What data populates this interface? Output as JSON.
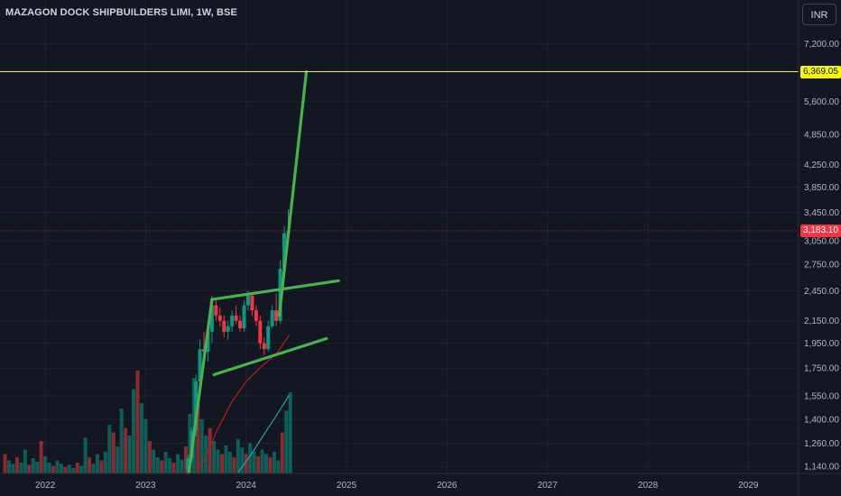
{
  "title": "MAZAGON DOCK SHIPBUILDERS LIMI, 1W, BSE",
  "currency_button": "INR",
  "target_price_label": "6,369.05",
  "last_price_label": "3,183.10",
  "colors": {
    "background": "#131722",
    "grid": "#1e222d",
    "axis_text": "#b2b5be",
    "up": "#089981",
    "down": "#f23645",
    "trendline": "#4caf50",
    "target_line": "#f7f70b",
    "ma_fast": "#b71c1c",
    "ma_slow": "#26a69a"
  },
  "chart_data": {
    "type": "candlestick",
    "title": "MAZAGON DOCK SHIPBUILDERS LIMI, 1W, BSE",
    "x_axis": {
      "ticks": [
        "2022",
        "2023",
        "2024",
        "2025",
        "2026",
        "2027",
        "2028",
        "2029"
      ],
      "range": [
        2021.55,
        2029.5
      ]
    },
    "y_axis": {
      "scale": "log",
      "range": [
        1105,
        7800
      ],
      "ticks": [
        "7,200.00",
        "5,600.00",
        "4,850.00",
        "4,250.00",
        "3,850.00",
        "3,450.00",
        "3,050.00",
        "2,750.00",
        "2,450.00",
        "2,150.00",
        "1,950.00",
        "1,750.00",
        "1,550.00",
        "1,400.00",
        "1,260.00",
        "1,140.00"
      ],
      "tick_values": [
        7200,
        5600,
        4850,
        4250,
        3850,
        3450,
        3050,
        2750,
        2450,
        2150,
        1950,
        1750,
        1550,
        1400,
        1260,
        1140
      ]
    },
    "horizontal_line": {
      "value": 6369.05,
      "label": "6,369.05"
    },
    "last_price": {
      "value": 3183.1,
      "label": "3,183.10"
    },
    "candles": [
      {
        "t": 2023.42,
        "o": 1120,
        "h": 1200,
        "l": 1100,
        "c": 1180
      },
      {
        "t": 2023.46,
        "o": 1180,
        "h": 1350,
        "l": 1160,
        "c": 1330
      },
      {
        "t": 2023.5,
        "o": 1330,
        "h": 1700,
        "l": 1300,
        "c": 1650
      },
      {
        "t": 2023.54,
        "o": 1650,
        "h": 1980,
        "l": 1600,
        "c": 1900
      },
      {
        "t": 2023.58,
        "o": 1900,
        "h": 2050,
        "l": 1820,
        "c": 1880
      },
      {
        "t": 2023.62,
        "o": 1880,
        "h": 2100,
        "l": 1800,
        "c": 2050
      },
      {
        "t": 2023.66,
        "o": 2050,
        "h": 2400,
        "l": 1950,
        "c": 2300
      },
      {
        "t": 2023.7,
        "o": 2300,
        "h": 2350,
        "l": 2150,
        "c": 2200
      },
      {
        "t": 2023.74,
        "o": 2200,
        "h": 2280,
        "l": 2100,
        "c": 2150
      },
      {
        "t": 2023.78,
        "o": 2150,
        "h": 2200,
        "l": 2000,
        "c": 2050
      },
      {
        "t": 2023.82,
        "o": 2050,
        "h": 2150,
        "l": 1980,
        "c": 2100
      },
      {
        "t": 2023.86,
        "o": 2100,
        "h": 2250,
        "l": 2050,
        "c": 2200
      },
      {
        "t": 2023.9,
        "o": 2200,
        "h": 2300,
        "l": 2120,
        "c": 2150
      },
      {
        "t": 2023.94,
        "o": 2150,
        "h": 2200,
        "l": 2050,
        "c": 2080
      },
      {
        "t": 2023.98,
        "o": 2080,
        "h": 2350,
        "l": 2050,
        "c": 2300
      },
      {
        "t": 2024.02,
        "o": 2300,
        "h": 2450,
        "l": 2250,
        "c": 2400
      },
      {
        "t": 2024.06,
        "o": 2400,
        "h": 2420,
        "l": 2200,
        "c": 2250
      },
      {
        "t": 2024.1,
        "o": 2250,
        "h": 2300,
        "l": 2100,
        "c": 2150
      },
      {
        "t": 2024.14,
        "o": 2150,
        "h": 2200,
        "l": 1900,
        "c": 1950
      },
      {
        "t": 2024.18,
        "o": 1950,
        "h": 2000,
        "l": 1850,
        "c": 1900
      },
      {
        "t": 2024.22,
        "o": 1900,
        "h": 2150,
        "l": 1880,
        "c": 2100
      },
      {
        "t": 2024.26,
        "o": 2100,
        "h": 2300,
        "l": 2080,
        "c": 2250
      },
      {
        "t": 2024.3,
        "o": 2250,
        "h": 2420,
        "l": 2100,
        "c": 2150
      },
      {
        "t": 2024.34,
        "o": 2150,
        "h": 2800,
        "l": 2120,
        "c": 2700
      },
      {
        "t": 2024.38,
        "o": 2700,
        "h": 3250,
        "l": 2650,
        "c": 3150
      },
      {
        "t": 2024.42,
        "o": 3150,
        "h": 3500,
        "l": 3050,
        "c": 3183.1
      }
    ],
    "trendlines": [
      {
        "name": "flagpole",
        "points": [
          [
            2023.43,
            1110
          ],
          [
            2023.66,
            2360
          ]
        ]
      },
      {
        "name": "channel-upper",
        "points": [
          [
            2023.66,
            2360
          ],
          [
            2024.92,
            2560
          ]
        ]
      },
      {
        "name": "channel-lower",
        "points": [
          [
            2023.68,
            1700
          ],
          [
            2024.8,
            1990
          ]
        ]
      },
      {
        "name": "breakout-projection",
        "points": [
          [
            2024.33,
            2200
          ],
          [
            2024.6,
            6369.05
          ]
        ]
      }
    ],
    "moving_averages": [
      {
        "color": "ma_fast",
        "points": [
          [
            2023.55,
            1130
          ],
          [
            2023.7,
            1320
          ],
          [
            2023.85,
            1500
          ],
          [
            2024.0,
            1650
          ],
          [
            2024.15,
            1760
          ],
          [
            2024.3,
            1860
          ],
          [
            2024.43,
            2020
          ]
        ]
      },
      {
        "color": "ma_slow",
        "points": [
          [
            2023.92,
            1110
          ],
          [
            2024.05,
            1200
          ],
          [
            2024.2,
            1330
          ],
          [
            2024.3,
            1420
          ],
          [
            2024.43,
            1555
          ]
        ]
      }
    ],
    "volume_bars": [
      {
        "t": 2021.6,
        "v": 0.18
      },
      {
        "t": 2021.64,
        "v": 0.12
      },
      {
        "t": 2021.68,
        "v": 0.09
      },
      {
        "t": 2021.72,
        "v": 0.15
      },
      {
        "t": 2021.76,
        "v": 0.1
      },
      {
        "t": 2021.8,
        "v": 0.22
      },
      {
        "t": 2021.84,
        "v": 0.08
      },
      {
        "t": 2021.88,
        "v": 0.14
      },
      {
        "t": 2021.92,
        "v": 0.11
      },
      {
        "t": 2021.96,
        "v": 0.3
      },
      {
        "t": 2022.0,
        "v": 0.16
      },
      {
        "t": 2022.04,
        "v": 0.1
      },
      {
        "t": 2022.08,
        "v": 0.07
      },
      {
        "t": 2022.12,
        "v": 0.12
      },
      {
        "t": 2022.16,
        "v": 0.09
      },
      {
        "t": 2022.2,
        "v": 0.06
      },
      {
        "t": 2022.24,
        "v": 0.08
      },
      {
        "t": 2022.28,
        "v": 0.05
      },
      {
        "t": 2022.32,
        "v": 0.1
      },
      {
        "t": 2022.36,
        "v": 0.07
      },
      {
        "t": 2022.4,
        "v": 0.33
      },
      {
        "t": 2022.44,
        "v": 0.15
      },
      {
        "t": 2022.48,
        "v": 0.09
      },
      {
        "t": 2022.52,
        "v": 0.18
      },
      {
        "t": 2022.56,
        "v": 0.12
      },
      {
        "t": 2022.6,
        "v": 0.2
      },
      {
        "t": 2022.64,
        "v": 0.45
      },
      {
        "t": 2022.68,
        "v": 0.38
      },
      {
        "t": 2022.72,
        "v": 0.25
      },
      {
        "t": 2022.76,
        "v": 0.6
      },
      {
        "t": 2022.8,
        "v": 0.42
      },
      {
        "t": 2022.84,
        "v": 0.35
      },
      {
        "t": 2022.88,
        "v": 0.78
      },
      {
        "t": 2022.92,
        "v": 0.95
      },
      {
        "t": 2022.96,
        "v": 0.65
      },
      {
        "t": 2023.0,
        "v": 0.5
      },
      {
        "t": 2023.04,
        "v": 0.3
      },
      {
        "t": 2023.08,
        "v": 0.22
      },
      {
        "t": 2023.12,
        "v": 0.15
      },
      {
        "t": 2023.16,
        "v": 0.12
      },
      {
        "t": 2023.2,
        "v": 0.2
      },
      {
        "t": 2023.24,
        "v": 0.14
      },
      {
        "t": 2023.28,
        "v": 0.1
      },
      {
        "t": 2023.32,
        "v": 0.18
      },
      {
        "t": 2023.36,
        "v": 0.13
      },
      {
        "t": 2023.4,
        "v": 0.25
      },
      {
        "t": 2023.44,
        "v": 0.55
      },
      {
        "t": 2023.48,
        "v": 0.88
      },
      {
        "t": 2023.52,
        "v": 0.7
      },
      {
        "t": 2023.56,
        "v": 0.5
      },
      {
        "t": 2023.6,
        "v": 0.35
      },
      {
        "t": 2023.64,
        "v": 0.42
      },
      {
        "t": 2023.68,
        "v": 0.3
      },
      {
        "t": 2023.72,
        "v": 0.22
      },
      {
        "t": 2023.76,
        "v": 0.18
      },
      {
        "t": 2023.8,
        "v": 0.26
      },
      {
        "t": 2023.84,
        "v": 0.2
      },
      {
        "t": 2023.88,
        "v": 0.15
      },
      {
        "t": 2023.92,
        "v": 0.32
      },
      {
        "t": 2023.96,
        "v": 0.24
      },
      {
        "t": 2024.0,
        "v": 0.18
      },
      {
        "t": 2024.04,
        "v": 0.28
      },
      {
        "t": 2024.08,
        "v": 0.2
      },
      {
        "t": 2024.12,
        "v": 0.16
      },
      {
        "t": 2024.16,
        "v": 0.22
      },
      {
        "t": 2024.2,
        "v": 0.18
      },
      {
        "t": 2024.24,
        "v": 0.15
      },
      {
        "t": 2024.28,
        "v": 0.2
      },
      {
        "t": 2024.32,
        "v": 0.12
      },
      {
        "t": 2024.36,
        "v": 0.38
      },
      {
        "t": 2024.4,
        "v": 0.58
      },
      {
        "t": 2024.44,
        "v": 0.75
      }
    ]
  }
}
